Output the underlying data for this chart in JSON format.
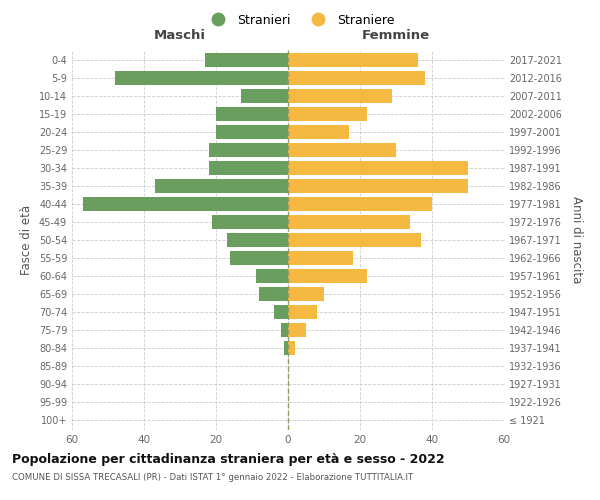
{
  "age_groups": [
    "100+",
    "95-99",
    "90-94",
    "85-89",
    "80-84",
    "75-79",
    "70-74",
    "65-69",
    "60-64",
    "55-59",
    "50-54",
    "45-49",
    "40-44",
    "35-39",
    "30-34",
    "25-29",
    "20-24",
    "15-19",
    "10-14",
    "5-9",
    "0-4"
  ],
  "birth_years": [
    "≤ 1921",
    "1922-1926",
    "1927-1931",
    "1932-1936",
    "1937-1941",
    "1942-1946",
    "1947-1951",
    "1952-1956",
    "1957-1961",
    "1962-1966",
    "1967-1971",
    "1972-1976",
    "1977-1981",
    "1982-1986",
    "1987-1991",
    "1992-1996",
    "1997-2001",
    "2002-2006",
    "2007-2011",
    "2012-2016",
    "2017-2021"
  ],
  "maschi": [
    0,
    0,
    0,
    0,
    1,
    2,
    4,
    8,
    9,
    16,
    17,
    21,
    57,
    37,
    22,
    22,
    20,
    20,
    13,
    48,
    23
  ],
  "femmine": [
    0,
    0,
    0,
    0,
    2,
    5,
    8,
    10,
    22,
    18,
    37,
    34,
    40,
    50,
    50,
    30,
    17,
    22,
    29,
    38,
    36
  ],
  "maschi_color": "#6a9e5e",
  "femmine_color": "#f5b942",
  "title": "Popolazione per cittadinanza straniera per età e sesso - 2022",
  "subtitle": "COMUNE DI SISSA TRECASALI (PR) - Dati ISTAT 1° gennaio 2022 - Elaborazione TUTTITALIA.IT",
  "xlabel_left": "Maschi",
  "xlabel_right": "Femmine",
  "ylabel_left": "Fasce di età",
  "ylabel_right": "Anni di nascita",
  "legend_stranieri": "Stranieri",
  "legend_straniere": "Straniere",
  "xlim": 60,
  "background_color": "#ffffff",
  "grid_color": "#cccccc"
}
